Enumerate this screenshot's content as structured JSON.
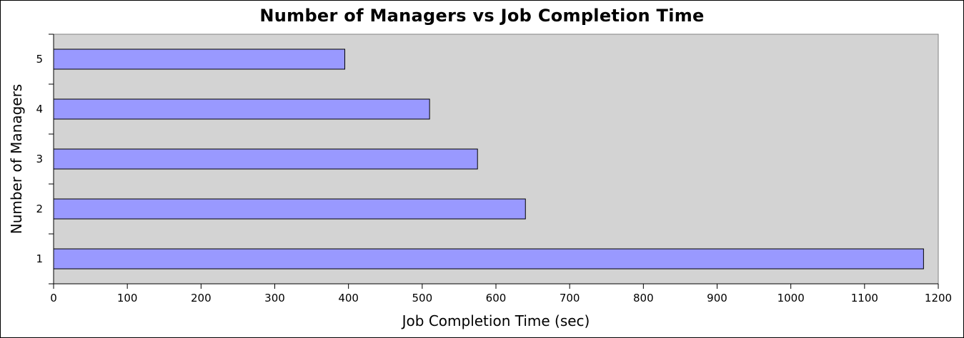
{
  "chart_data": {
    "type": "bar",
    "orientation": "horizontal",
    "title": "Number of Managers vs Job Completion Time",
    "xlabel": "Job Completion Time (sec)",
    "ylabel": "Number of Managers",
    "categories": [
      "1",
      "2",
      "3",
      "4",
      "5"
    ],
    "values": [
      1180,
      640,
      575,
      510,
      395
    ],
    "xlim": [
      0,
      1200
    ],
    "xticks": [
      "0",
      "100",
      "200",
      "300",
      "400",
      "500",
      "600",
      "700",
      "800",
      "900",
      "1000",
      "1100",
      "1200"
    ],
    "grid": false,
    "legend": "none",
    "colors": {
      "bar_fill": "#9999ff",
      "bar_stroke": "#000000",
      "plot_background": "#d3d3d3",
      "page_background": "#ffffff"
    }
  }
}
